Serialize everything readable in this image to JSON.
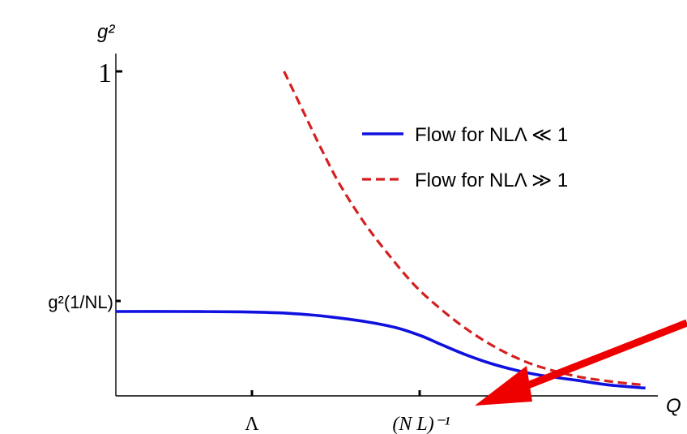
{
  "chart_data": {
    "type": "line",
    "title": "",
    "xlabel": "Q",
    "ylabel": "g²",
    "x_ticks": [
      {
        "label": "Λ"
      },
      {
        "label": "(N L)⁻¹"
      }
    ],
    "y_ticks": [
      {
        "label": "1",
        "value": 1
      },
      {
        "label": "g²(1/NL)",
        "value": 0.26
      }
    ],
    "ylim": [
      0,
      1
    ],
    "legend_position": "top-right",
    "series": [
      {
        "name": "Flow for NLΛ ≪ 1",
        "style": "solid",
        "color": "#1010e0",
        "points": [
          [
            0.0,
            0.26
          ],
          [
            0.1,
            0.26
          ],
          [
            0.2,
            0.259
          ],
          [
            0.26,
            0.256
          ],
          [
            0.31,
            0.25
          ],
          [
            0.35,
            0.242
          ],
          [
            0.4,
            0.229
          ],
          [
            0.45,
            0.21
          ],
          [
            0.49,
            0.185
          ],
          [
            0.52,
            0.16
          ],
          [
            0.56,
            0.128
          ],
          [
            0.6,
            0.101
          ],
          [
            0.64,
            0.08
          ],
          [
            0.68,
            0.064
          ],
          [
            0.74,
            0.048
          ],
          [
            0.79,
            0.034
          ],
          [
            0.85,
            0.024
          ]
        ]
      },
      {
        "name": "Flow for NLΛ ≫ 1",
        "style": "dashed",
        "color": "#d42020",
        "points": [
          [
            0.27,
            1.0
          ],
          [
            0.3,
            0.88
          ],
          [
            0.33,
            0.76
          ],
          [
            0.36,
            0.65
          ],
          [
            0.4,
            0.53
          ],
          [
            0.44,
            0.43
          ],
          [
            0.48,
            0.34
          ],
          [
            0.52,
            0.27
          ],
          [
            0.56,
            0.21
          ],
          [
            0.6,
            0.16
          ],
          [
            0.64,
            0.12
          ],
          [
            0.68,
            0.09
          ],
          [
            0.74,
            0.06
          ],
          [
            0.8,
            0.043
          ],
          [
            0.85,
            0.033
          ]
        ]
      }
    ],
    "annotation": {
      "type": "arrow",
      "color": "#ee0000"
    }
  }
}
